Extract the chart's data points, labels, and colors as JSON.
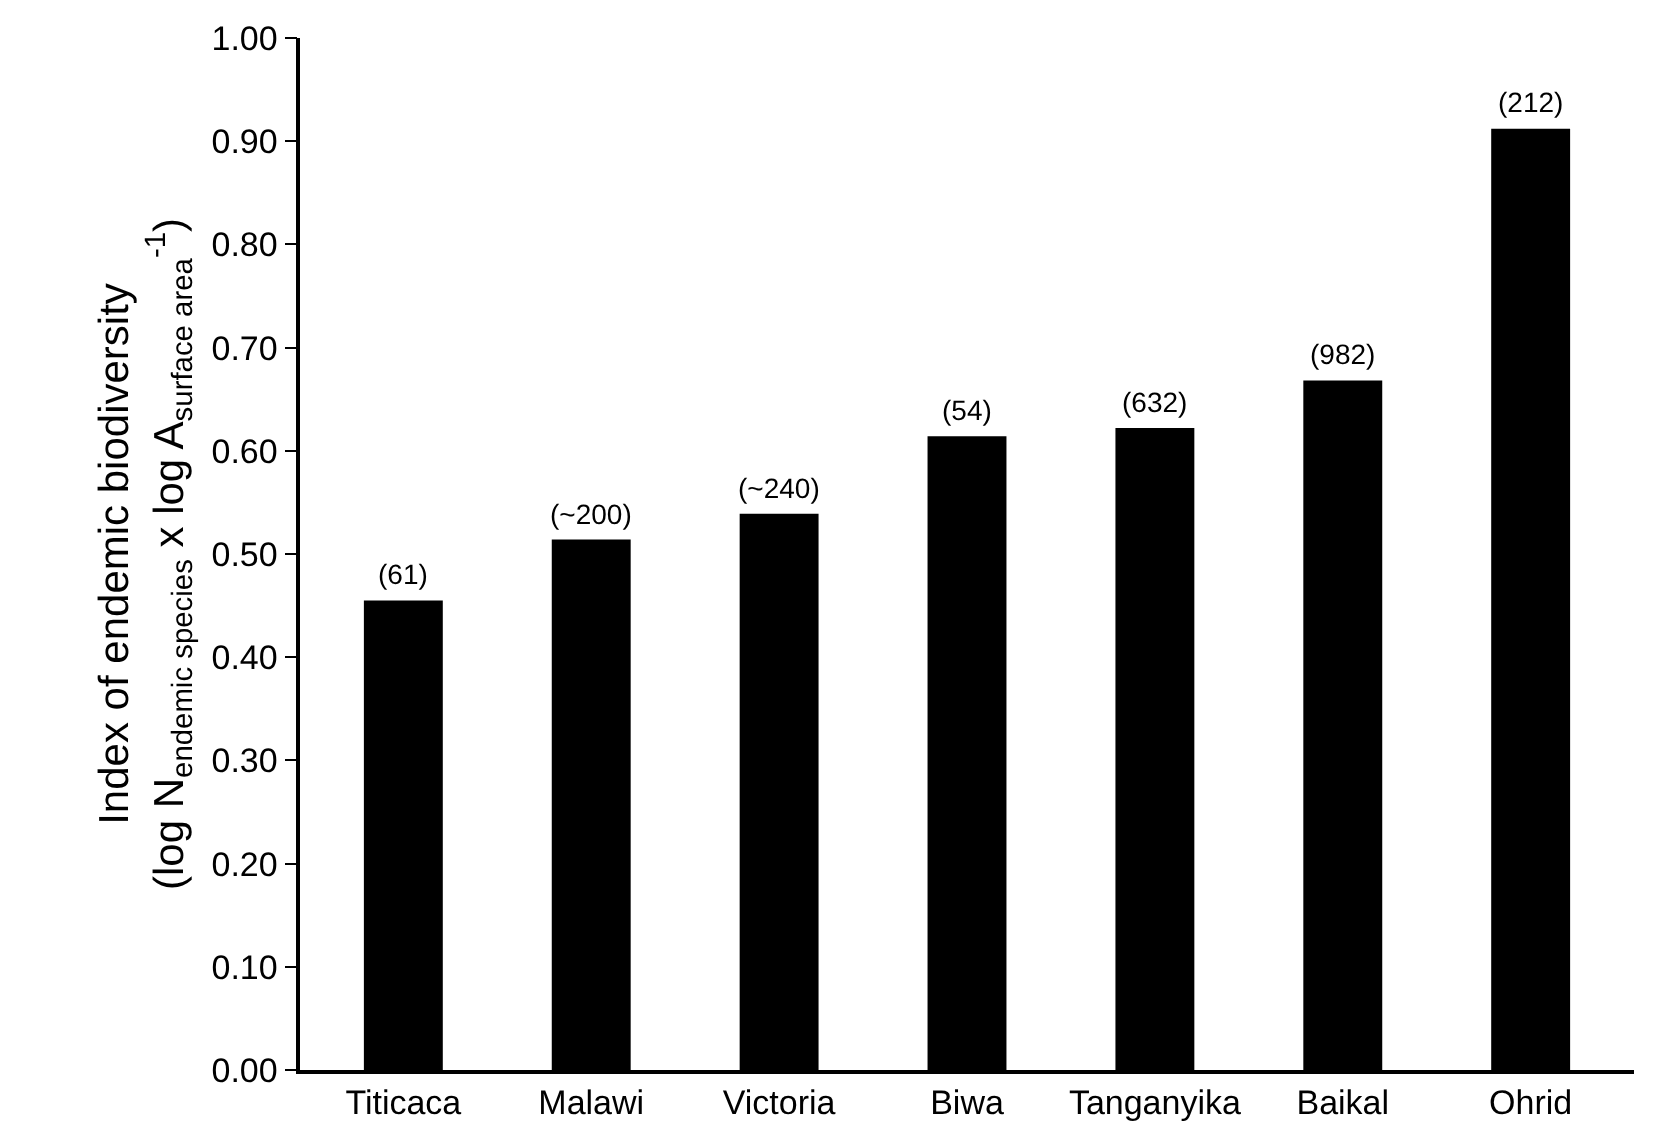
{
  "chart_data": {
    "type": "bar",
    "ylabel": "Index of endemic biodiversity\n(log N$_{endemic species}$ x log A$_{surface area}$$^{-1}$)",
    "categories": [
      "Titicaca",
      "Malawi",
      "Victoria",
      "Biwa",
      "Tanganyika",
      "Baikal",
      "Ohrid"
    ],
    "values": [
      0.455,
      0.514,
      0.539,
      0.614,
      0.622,
      0.668,
      0.912
    ],
    "annotations": [
      {
        "text": "(61)",
        "x": "Titicaca",
        "y": 0.455
      },
      {
        "text": "(~200)",
        "x": "Malawi",
        "y": 0.514
      },
      {
        "text": "(~240)",
        "x": "Victoria",
        "y": 0.539
      },
      {
        "text": "(54)",
        "x": "Biwa",
        "y": 0.614
      },
      {
        "text": "(632)",
        "x": "Tanganyika",
        "y": 0.622
      },
      {
        "text": "(982)",
        "x": "Baikal",
        "y": 0.668
      },
      {
        "text": "(212)",
        "x": "Ohrid",
        "y": 0.912
      }
    ],
    "color": "#000000",
    "ylim": [
      0,
      1.0
    ],
    "yticks": [
      {
        "value": 0,
        "label": "0.00"
      },
      {
        "value": 0.1,
        "label": "0.10"
      },
      {
        "value": 0.2,
        "label": "0.20"
      },
      {
        "value": 0.3,
        "label": "0.30"
      },
      {
        "value": 0.4,
        "label": "0.40"
      },
      {
        "value": 0.5,
        "label": "0.50"
      },
      {
        "value": 0.6,
        "label": "0.60"
      },
      {
        "value": 0.7,
        "label": "0.70"
      },
      {
        "value": 0.8,
        "label": "0.80"
      },
      {
        "value": 0.9,
        "label": "0.90"
      },
      {
        "value": 1.0,
        "label": "1.00"
      }
    ],
    "grid": false
  }
}
